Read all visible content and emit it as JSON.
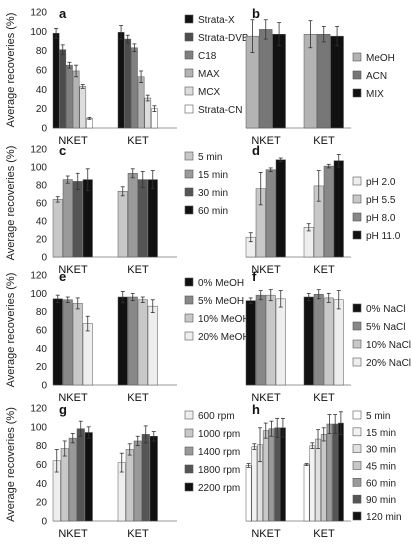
{
  "chart_data": [
    {
      "panel_label": "a",
      "type": "bar",
      "categories": [
        "NKET",
        "KET"
      ],
      "ylabel": "Average recoveries (%)",
      "ylim": [
        0,
        120
      ],
      "yticks": [
        "0",
        "20",
        "40",
        "60",
        "80",
        "100",
        "120"
      ],
      "legend_position": "right",
      "series": [
        {
          "name": "Strata-X",
          "color": "#111111",
          "values": [
            98,
            99
          ],
          "errors": [
            5,
            7
          ]
        },
        {
          "name": "Strata-DVB",
          "color": "#4d4d4d",
          "values": [
            81,
            92
          ],
          "errors": [
            5,
            4
          ]
        },
        {
          "name": "C18",
          "color": "#808080",
          "values": [
            65,
            83
          ],
          "errors": [
            3,
            4
          ]
        },
        {
          "name": "MAX",
          "color": "#b3b3b3",
          "values": [
            59,
            53
          ],
          "errors": [
            6,
            6
          ]
        },
        {
          "name": "MCX",
          "color": "#dddddd",
          "values": [
            43,
            31
          ],
          "errors": [
            2,
            3
          ]
        },
        {
          "name": "Strata-CN",
          "color": "#ffffff",
          "values": [
            10,
            20
          ],
          "errors": [
            1,
            3
          ]
        }
      ]
    },
    {
      "panel_label": "b",
      "type": "bar",
      "categories": [
        "NKET",
        "KET"
      ],
      "ylabel": "",
      "ylim": [
        0,
        120
      ],
      "yticks": [],
      "legend_position": "right",
      "series": [
        {
          "name": "MeOH",
          "color": "#b3b3b3",
          "values": [
            95,
            97
          ],
          "errors": [
            17,
            14
          ]
        },
        {
          "name": "ACN",
          "color": "#777777",
          "values": [
            102,
            97
          ],
          "errors": [
            10,
            8
          ]
        },
        {
          "name": "MIX",
          "color": "#111111",
          "values": [
            97,
            95
          ],
          "errors": [
            12,
            10
          ]
        }
      ]
    },
    {
      "panel_label": "c",
      "type": "bar",
      "categories": [
        "NKET",
        "KET"
      ],
      "ylabel": "Average recoveries (%)",
      "ylim": [
        0,
        120
      ],
      "yticks": [
        "0",
        "20",
        "40",
        "60",
        "80",
        "100",
        "120"
      ],
      "legend_position": "right",
      "series": [
        {
          "name": "5 min",
          "color": "#c8c8c8",
          "values": [
            64,
            73
          ],
          "errors": [
            3,
            5
          ]
        },
        {
          "name": "15 min",
          "color": "#9a9a9a",
          "values": [
            86,
            93
          ],
          "errors": [
            4,
            5
          ]
        },
        {
          "name": "30 min",
          "color": "#555555",
          "values": [
            84,
            86
          ],
          "errors": [
            9,
            9
          ]
        },
        {
          "name": "60 min",
          "color": "#111111",
          "values": [
            86,
            86
          ],
          "errors": [
            12,
            10
          ]
        }
      ]
    },
    {
      "panel_label": "d",
      "type": "bar",
      "categories": [
        "NKET",
        "KET"
      ],
      "ylabel": "",
      "ylim": [
        0,
        120
      ],
      "yticks": [],
      "legend_position": "right",
      "series": [
        {
          "name": "pH 2.0",
          "color": "#eeeeee",
          "values": [
            22,
            33
          ],
          "errors": [
            5,
            4
          ]
        },
        {
          "name": "pH 5.5",
          "color": "#c8c8c8",
          "values": [
            76,
            79
          ],
          "errors": [
            18,
            17
          ]
        },
        {
          "name": "pH 8.0",
          "color": "#888888",
          "values": [
            97,
            101
          ],
          "errors": [
            2,
            2
          ]
        },
        {
          "name": "pH 11.0",
          "color": "#111111",
          "values": [
            108,
            107
          ],
          "errors": [
            2,
            7
          ]
        }
      ]
    },
    {
      "panel_label": "e",
      "type": "bar",
      "categories": [
        "NKET",
        "KET"
      ],
      "ylabel": "Average recoveries (%)",
      "ylim": [
        0,
        120
      ],
      "yticks": [
        "0",
        "20",
        "40",
        "60",
        "80",
        "100",
        "120"
      ],
      "legend_position": "right",
      "series": [
        {
          "name": "0% MeOH",
          "color": "#111111",
          "values": [
            94,
            96
          ],
          "errors": [
            4,
            6
          ]
        },
        {
          "name": "5% MeOH",
          "color": "#888888",
          "values": [
            93,
            96
          ],
          "errors": [
            3,
            4
          ]
        },
        {
          "name": "10% MeOH",
          "color": "#c8c8c8",
          "values": [
            89,
            93
          ],
          "errors": [
            6,
            3
          ]
        },
        {
          "name": "20% MeOH",
          "color": "#eeeeee",
          "values": [
            67,
            86
          ],
          "errors": [
            8,
            7
          ]
        }
      ]
    },
    {
      "panel_label": "f",
      "type": "bar",
      "categories": [
        "NKET",
        "KET"
      ],
      "ylabel": "",
      "ylim": [
        0,
        120
      ],
      "yticks": [],
      "legend_position": "right",
      "series": [
        {
          "name": "0% NaCl",
          "color": "#111111",
          "values": [
            92,
            96
          ],
          "errors": [
            3,
            4
          ]
        },
        {
          "name": "5% NaCl",
          "color": "#888888",
          "values": [
            98,
            99
          ],
          "errors": [
            5,
            5
          ]
        },
        {
          "name": "10% NaCl",
          "color": "#c8c8c8",
          "values": [
            98,
            95
          ],
          "errors": [
            6,
            5
          ]
        },
        {
          "name": "20% NaCl",
          "color": "#eeeeee",
          "values": [
            94,
            93
          ],
          "errors": [
            9,
            10
          ]
        }
      ]
    },
    {
      "panel_label": "g",
      "type": "bar",
      "categories": [
        "NKET",
        "KET"
      ],
      "ylabel": "Average recoveries (%)",
      "ylim": [
        0,
        120
      ],
      "yticks": [
        "0",
        "20",
        "40",
        "60",
        "80",
        "100",
        "120"
      ],
      "legend_position": "right",
      "series": [
        {
          "name": "600 rpm",
          "color": "#eeeeee",
          "values": [
            64,
            62
          ],
          "errors": [
            12,
            10
          ]
        },
        {
          "name": "1000 rpm",
          "color": "#c8c8c8",
          "values": [
            77,
            76
          ],
          "errors": [
            8,
            6
          ]
        },
        {
          "name": "1400 rpm",
          "color": "#999999",
          "values": [
            88,
            85
          ],
          "errors": [
            5,
            5
          ]
        },
        {
          "name": "1800 rpm",
          "color": "#555555",
          "values": [
            98,
            92
          ],
          "errors": [
            8,
            9
          ]
        },
        {
          "name": "2200 rpm",
          "color": "#111111",
          "values": [
            94,
            90
          ],
          "errors": [
            6,
            5
          ]
        }
      ]
    },
    {
      "panel_label": "h",
      "type": "bar",
      "categories": [
        "NKET",
        "KET"
      ],
      "ylabel": "",
      "ylim": [
        0,
        120
      ],
      "yticks": [],
      "legend_position": "right",
      "series": [
        {
          "name": "5 min",
          "color": "#ffffff",
          "values": [
            59,
            60
          ],
          "errors": [
            2,
            1
          ]
        },
        {
          "name": "15 min",
          "color": "#f2f2f2",
          "values": [
            79,
            80
          ],
          "errors": [
            3,
            3
          ]
        },
        {
          "name": "30 min",
          "color": "#e0e0e0",
          "values": [
            81,
            87
          ],
          "errors": [
            18,
            10
          ]
        },
        {
          "name": "45 min",
          "color": "#c8c8c8",
          "values": [
            96,
            92
          ],
          "errors": [
            8,
            7
          ]
        },
        {
          "name": "60 min",
          "color": "#9a9a9a",
          "values": [
            98,
            103
          ],
          "errors": [
            8,
            10
          ]
        },
        {
          "name": "90 min",
          "color": "#555555",
          "values": [
            99,
            103
          ],
          "errors": [
            10,
            10
          ]
        },
        {
          "name": "120 min",
          "color": "#111111",
          "values": [
            99,
            104
          ],
          "errors": [
            10,
            12
          ]
        }
      ]
    }
  ]
}
